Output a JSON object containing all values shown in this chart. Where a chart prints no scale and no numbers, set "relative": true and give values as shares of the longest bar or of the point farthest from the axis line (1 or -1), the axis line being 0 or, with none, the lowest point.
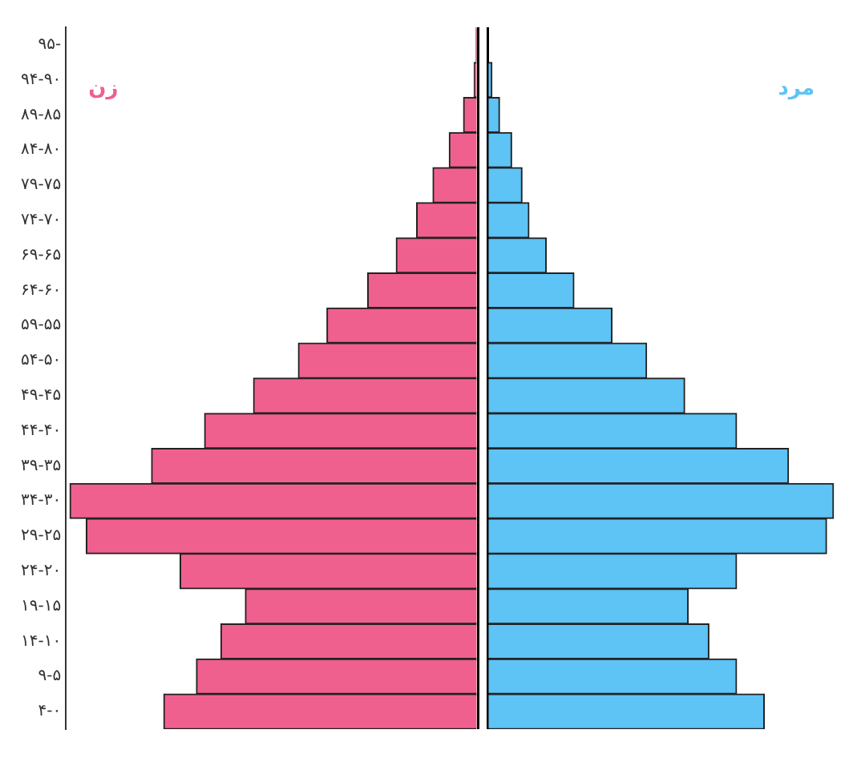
{
  "chart_data": [
    {
      "type": "bar",
      "orientation": "horizontal",
      "relative": true,
      "grid": false,
      "legend": false,
      "tick_labels": "y",
      "categories": [
        "۹۵-",
        "۹۴-۹۰",
        "۸۹-۸۵",
        "۸۴-۸۰",
        "۷۹-۷۵",
        "۷۴-۷۰",
        "۶۹-۶۵",
        "۶۴-۶۰",
        "۵۹-۵۵",
        "۵۴-۵۰",
        "۴۹-۴۵",
        "۴۴-۴۰",
        "۳۹-۳۵",
        "۳۴-۳۰",
        "۲۹-۲۵",
        "۲۴-۲۰",
        "۱۹-۱۵",
        "۱۴-۱۰",
        "۹-۵",
        "۴-۰"
      ],
      "series": [
        {
          "name": "زن",
          "color": "#f0608f",
          "values": [
            -0.004,
            -0.009,
            -0.035,
            -0.07,
            -0.11,
            -0.15,
            -0.2,
            -0.27,
            -0.37,
            -0.44,
            -0.55,
            -0.67,
            -0.8,
            -1,
            -0.96,
            -0.73,
            -0.57,
            -0.63,
            -0.69,
            -0.77
          ]
        }
      ]
    },
    {
      "type": "bar",
      "orientation": "horizontal",
      "relative": true,
      "grid": false,
      "legend": false,
      "tick_labels": false,
      "categories": [
        null,
        null,
        null,
        null,
        null,
        null,
        null,
        null,
        null,
        null,
        null,
        null,
        null,
        null,
        null,
        null,
        null,
        null,
        null,
        null
      ],
      "series": [
        {
          "name": "مرد",
          "color": "#5ec3f5",
          "values": [
            null,
            0.013,
            0.035,
            0.07,
            0.1,
            0.12,
            0.17,
            0.25,
            0.36,
            0.46,
            0.57,
            0.72,
            0.87,
            1,
            0.98,
            0.72,
            0.58,
            0.64,
            0.72,
            0.8
          ]
        }
      ]
    }
  ]
}
